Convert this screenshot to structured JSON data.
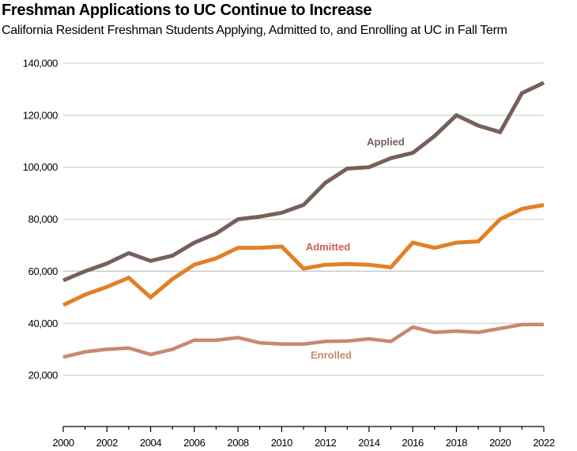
{
  "header": {
    "title": "Freshman Applications to UC Continue to Increase",
    "subtitle": "California Resident Freshman Students Applying, Admitted to, and Enrolling at UC in Fall Term"
  },
  "colors": {
    "applied": "#76605A",
    "admitted": "#E28026",
    "enrolled": "#C98870",
    "admitted_label": "#C9604E",
    "gridline": "#C8C8C8",
    "axis": "#000000"
  },
  "chart_data": {
    "type": "line",
    "title": "Freshman Applications to UC Continue to Increase",
    "subtitle": "California Resident Freshman Students Applying, Admitted to, and Enrolling at UC in Fall Term",
    "xlabel": "",
    "ylabel": "",
    "x": [
      2000,
      2001,
      2002,
      2003,
      2004,
      2005,
      2006,
      2007,
      2008,
      2009,
      2010,
      2011,
      2012,
      2013,
      2014,
      2015,
      2016,
      2017,
      2018,
      2019,
      2020,
      2021,
      2022
    ],
    "x_tick_labels": [
      "2000",
      "2002",
      "2004",
      "2006",
      "2008",
      "2010",
      "2012",
      "2014",
      "2016",
      "2018",
      "2020",
      "2022"
    ],
    "y_tick_labels": [
      "20,000",
      "40,000",
      "60,000",
      "80,000",
      "100,000",
      "120,000",
      "140,000"
    ],
    "y_ticks": [
      20000,
      40000,
      60000,
      80000,
      100000,
      120000,
      140000
    ],
    "ylim": [
      0,
      140000
    ],
    "grid": true,
    "legend": "inline labels",
    "series": [
      {
        "name": "Applied",
        "label_pos": [
          488,
          184
        ],
        "values": [
          56500,
          60000,
          63000,
          67000,
          64000,
          66000,
          71000,
          74500,
          80000,
          81000,
          82500,
          85500,
          94000,
          99500,
          100000,
          103500,
          105500,
          112000,
          120000,
          116000,
          113500,
          128500,
          132500
        ]
      },
      {
        "name": "Admitted",
        "label_pos": [
          415,
          317
        ],
        "values": [
          47000,
          51000,
          54000,
          57500,
          50000,
          57000,
          62500,
          65000,
          69000,
          69000,
          69500,
          61000,
          62500,
          62800,
          62500,
          61500,
          71000,
          69000,
          71000,
          71500,
          80000,
          84000,
          85500
        ]
      },
      {
        "name": "Enrolled",
        "label_pos": [
          419,
          454
        ],
        "values": [
          27000,
          29000,
          30000,
          30500,
          28000,
          30000,
          33500,
          33500,
          34500,
          32500,
          32000,
          32000,
          33000,
          33200,
          34000,
          33000,
          38500,
          36500,
          37000,
          36500,
          38000,
          39500,
          39500
        ]
      }
    ]
  }
}
